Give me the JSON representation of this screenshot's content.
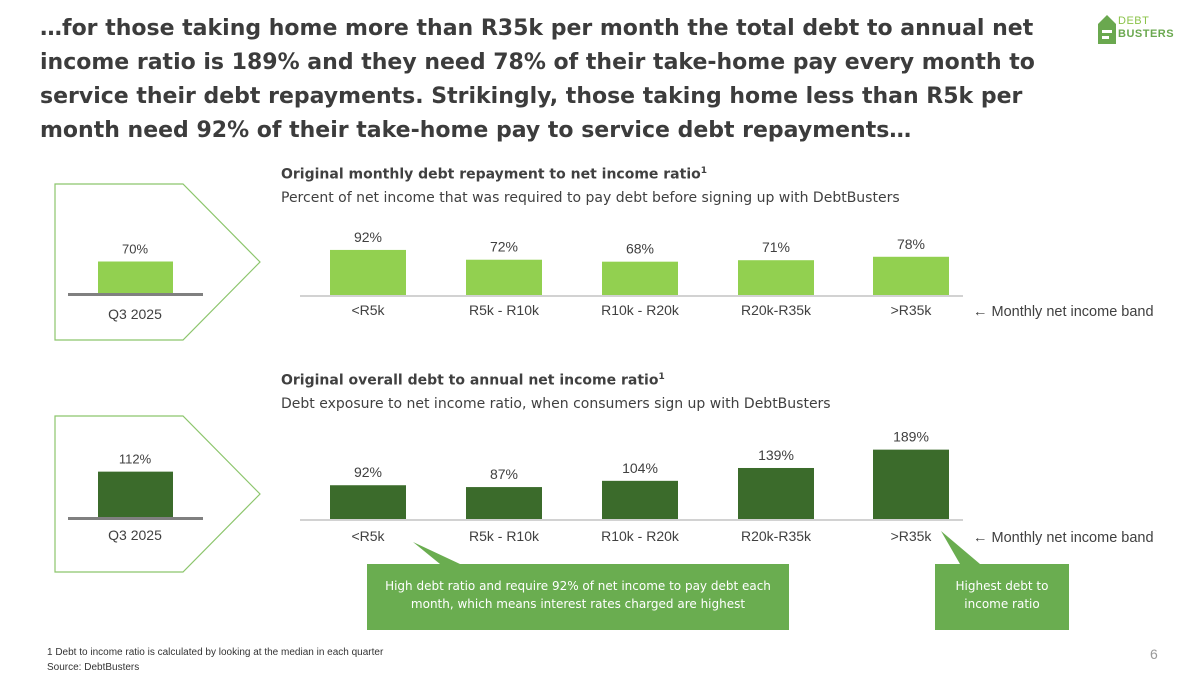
{
  "headline": "…for those taking home more than R35k per month the total debt to annual net income ratio is 189% and they need 78% of their take-home pay every month to service their debt repayments. Strikingly, those taking home less than R5k per month need 92% of their take-home pay to service debt repayments…",
  "logo": {
    "line1": "DEBT",
    "line2": "BUSTERS"
  },
  "colors": {
    "light_green": "#92d050",
    "dark_green": "#3b6b2b",
    "callout": "#6aad50",
    "axis": "#808080"
  },
  "chart_data": [
    {
      "type": "bar",
      "title": "Original monthly debt repayment to net income ratio",
      "title_sup": "1",
      "subtitle": "Percent of net income that was required to pay debt before signing up with DebtBusters",
      "categories": [
        "<R5k",
        "R5k - R10k",
        "R10k - R20k",
        "R20k-R35k",
        ">R35k"
      ],
      "values": [
        92,
        72,
        68,
        71,
        78
      ],
      "labels": [
        "92%",
        "72%",
        "68%",
        "71%",
        "78%"
      ],
      "axis_note": "← Monthly net income band",
      "summary": {
        "period": "Q3 2025",
        "value": 70,
        "label": "70%"
      },
      "color": "#92d050"
    },
    {
      "type": "bar",
      "title": "Original overall debt to annual net income ratio",
      "title_sup": "1",
      "subtitle": "Debt exposure to net income ratio, when consumers sign up with DebtBusters",
      "categories": [
        "<R5k",
        "R5k - R10k",
        "R10k - R20k",
        "R20k-R35k",
        ">R35k"
      ],
      "values": [
        92,
        87,
        104,
        139,
        189
      ],
      "labels": [
        "92%",
        "87%",
        "104%",
        "139%",
        "189%"
      ],
      "axis_note": "← Monthly net income band",
      "summary": {
        "period": "Q3 2025",
        "value": 112,
        "label": "112%"
      },
      "color": "#3b6b2b"
    }
  ],
  "callouts": [
    {
      "text": "High debt ratio and require 92% of net income to pay debt each month, which means interest rates charged are highest"
    },
    {
      "text": "Highest debt to income ratio"
    }
  ],
  "footnote": "1 Debt to income ratio is calculated by looking at the median in each quarter",
  "source": "Source: DebtBusters",
  "page_number": "6"
}
